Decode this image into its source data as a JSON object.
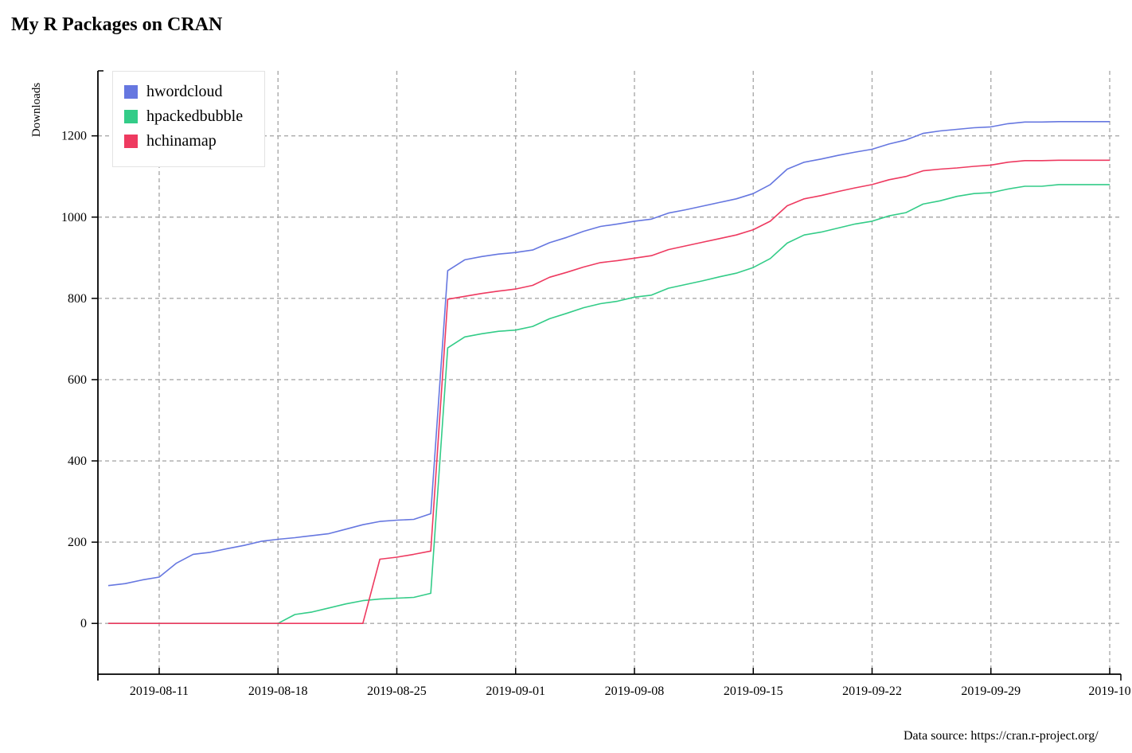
{
  "title": "My R Packages on CRAN",
  "source": "Data source: https://cran.r-project.org/",
  "chart_data": {
    "type": "line",
    "title": "My R Packages on CRAN",
    "ylabel": "Downloads",
    "xlabel": "",
    "x_start": "2019-08-08",
    "x_end": "2019-10-06",
    "x_ticks": [
      "2019-08-11",
      "2019-08-18",
      "2019-08-25",
      "2019-09-01",
      "2019-09-08",
      "2019-09-15",
      "2019-09-22",
      "2019-09-29",
      "2019-10-06"
    ],
    "x_tick_labels": [
      "2019-08-11",
      "2019-08-18",
      "2019-08-25",
      "2019-09-01",
      "2019-09-08",
      "2019-09-15",
      "2019-09-22",
      "2019-09-29",
      "2019-10"
    ],
    "y_ticks": [
      0,
      200,
      400,
      600,
      800,
      1000,
      1200
    ],
    "ylim": [
      -125,
      1360
    ],
    "grid": true,
    "legend_position": "top-left",
    "dates": [
      "2019-08-08",
      "2019-08-09",
      "2019-08-10",
      "2019-08-11",
      "2019-08-12",
      "2019-08-13",
      "2019-08-14",
      "2019-08-15",
      "2019-08-16",
      "2019-08-17",
      "2019-08-18",
      "2019-08-19",
      "2019-08-20",
      "2019-08-21",
      "2019-08-22",
      "2019-08-23",
      "2019-08-24",
      "2019-08-25",
      "2019-08-26",
      "2019-08-27",
      "2019-08-28",
      "2019-08-29",
      "2019-08-30",
      "2019-08-31",
      "2019-09-01",
      "2019-09-02",
      "2019-09-03",
      "2019-09-04",
      "2019-09-05",
      "2019-09-06",
      "2019-09-07",
      "2019-09-08",
      "2019-09-09",
      "2019-09-10",
      "2019-09-11",
      "2019-09-12",
      "2019-09-13",
      "2019-09-14",
      "2019-09-15",
      "2019-09-16",
      "2019-09-17",
      "2019-09-18",
      "2019-09-19",
      "2019-09-20",
      "2019-09-21",
      "2019-09-22",
      "2019-09-23",
      "2019-09-24",
      "2019-09-25",
      "2019-09-26",
      "2019-09-27",
      "2019-09-28",
      "2019-09-29",
      "2019-09-30",
      "2019-10-01",
      "2019-10-02",
      "2019-10-03",
      "2019-10-04",
      "2019-10-05",
      "2019-10-06"
    ],
    "series": [
      {
        "name": "hwordcloud",
        "color": "#6677e0",
        "values": [
          93,
          98,
          107,
          114,
          148,
          170,
          175,
          184,
          192,
          202,
          207,
          211,
          216,
          221,
          232,
          243,
          251,
          254,
          256,
          270,
          868,
          895,
          903,
          909,
          913,
          919,
          937,
          950,
          965,
          977,
          983,
          990,
          995,
          1010,
          1018,
          1027,
          1036,
          1045,
          1058,
          1080,
          1118,
          1135,
          1143,
          1152,
          1160,
          1167,
          1180,
          1190,
          1206,
          1212,
          1216,
          1220,
          1222,
          1230,
          1234,
          1234,
          1235,
          1235,
          1235,
          1235
        ]
      },
      {
        "name": "hpackedbubble",
        "color": "#33cc88",
        "values": [
          0,
          0,
          0,
          0,
          0,
          0,
          0,
          0,
          0,
          0,
          0,
          22,
          28,
          38,
          48,
          56,
          60,
          62,
          64,
          74,
          678,
          705,
          713,
          719,
          722,
          731,
          750,
          763,
          777,
          787,
          793,
          803,
          808,
          825,
          834,
          843,
          853,
          862,
          876,
          898,
          936,
          956,
          963,
          973,
          983,
          990,
          1003,
          1011,
          1032,
          1040,
          1051,
          1058,
          1060,
          1069,
          1076,
          1076,
          1080,
          1080,
          1080,
          1080
        ]
      },
      {
        "name": "hchinamap",
        "color": "#ee3a60",
        "values": [
          0,
          0,
          0,
          0,
          0,
          0,
          0,
          0,
          0,
          0,
          0,
          0,
          0,
          0,
          0,
          0,
          158,
          163,
          170,
          178,
          798,
          805,
          812,
          818,
          823,
          832,
          852,
          864,
          877,
          888,
          893,
          899,
          905,
          920,
          929,
          938,
          947,
          956,
          969,
          990,
          1028,
          1045,
          1053,
          1063,
          1072,
          1080,
          1092,
          1100,
          1114,
          1118,
          1121,
          1125,
          1128,
          1135,
          1139,
          1139,
          1140,
          1140,
          1140,
          1140
        ]
      }
    ]
  }
}
